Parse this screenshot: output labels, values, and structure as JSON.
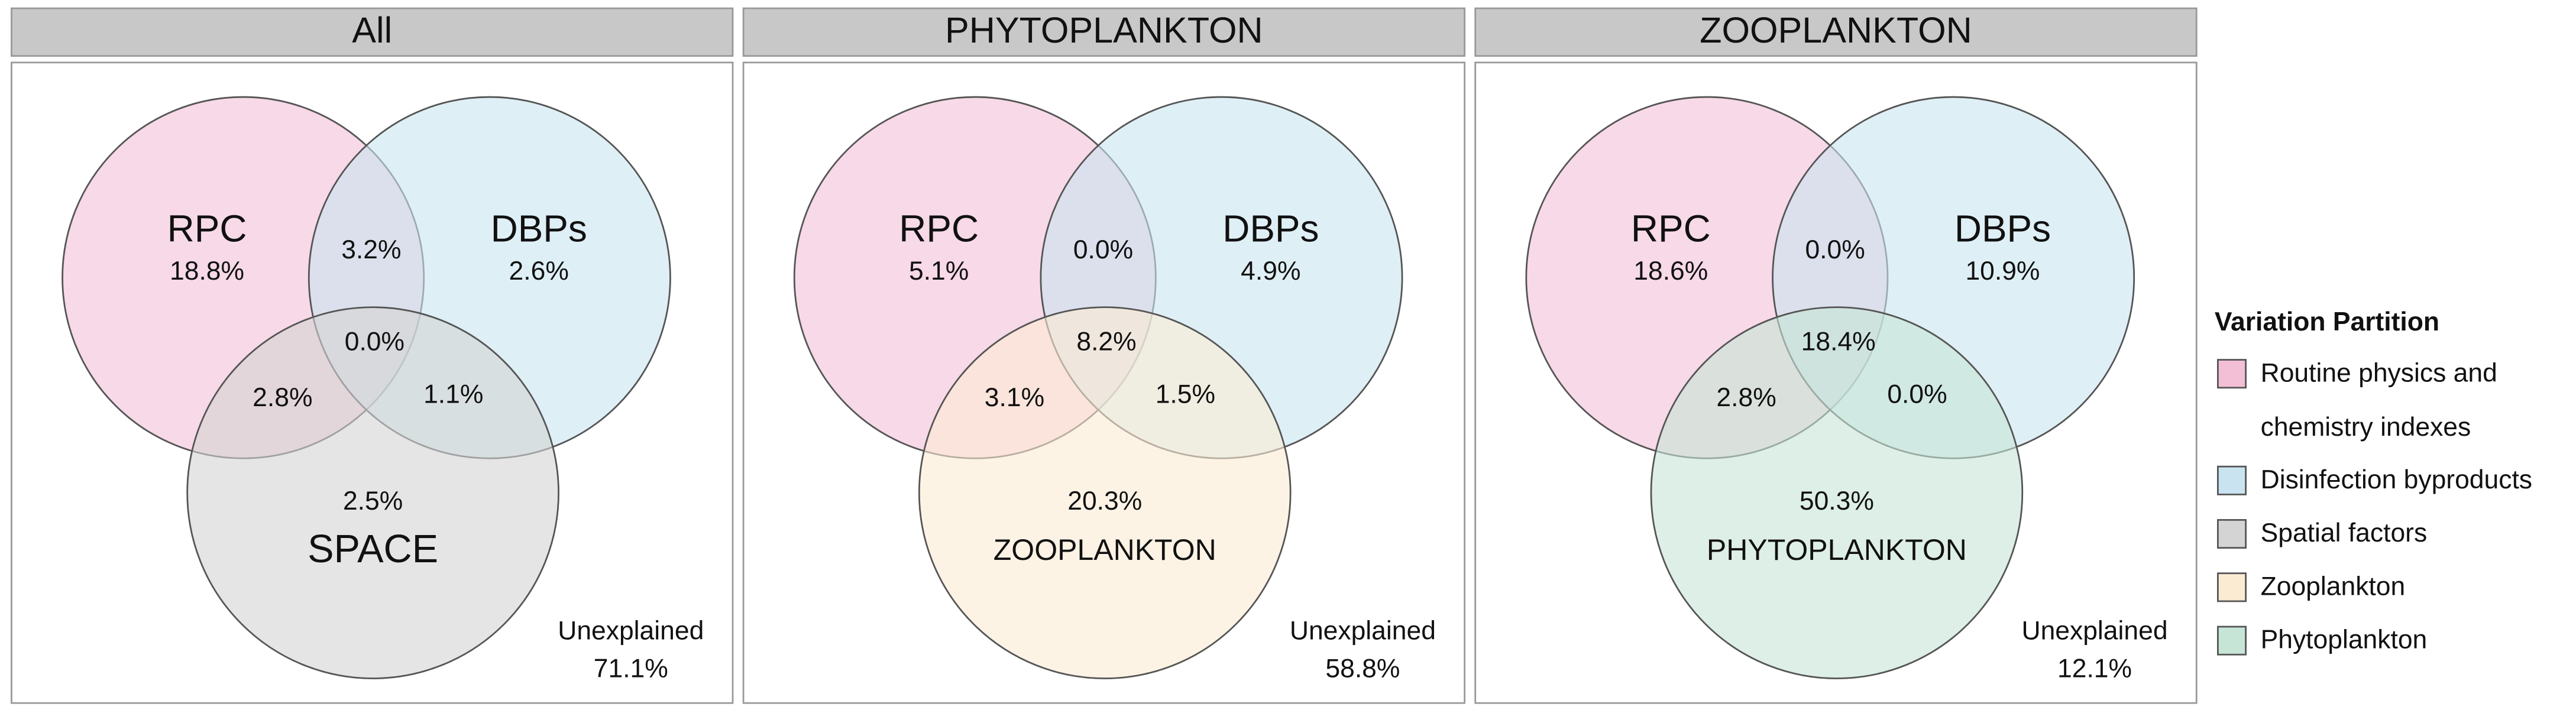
{
  "panels": [
    {
      "title": "All",
      "sets": [
        {
          "label": "RPC",
          "value": "18.8%",
          "color": "#f2bfd7"
        },
        {
          "label": "DBPs",
          "value": "2.6%",
          "color": "#c9e4f0"
        },
        {
          "label": "SPACE",
          "value": "2.5%",
          "color": "#d4d4d4"
        }
      ],
      "overlaps": {
        "rpc_dbps": "3.2%",
        "center": "0.0%",
        "rpc_third": "2.8%",
        "dbps_third": "1.1%"
      },
      "unexplained": {
        "label": "Unexplained",
        "value": "71.1%"
      }
    },
    {
      "title": "PHYTOPLANKTON",
      "sets": [
        {
          "label": "RPC",
          "value": "5.1%",
          "color": "#f2bfd7"
        },
        {
          "label": "DBPs",
          "value": "4.9%",
          "color": "#c9e4f0"
        },
        {
          "label": "ZOOPLANKTON",
          "value": "20.3%",
          "color": "#fbebd3"
        }
      ],
      "overlaps": {
        "rpc_dbps": "0.0%",
        "center": "8.2%",
        "rpc_third": "3.1%",
        "dbps_third": "1.5%"
      },
      "unexplained": {
        "label": "Unexplained",
        "value": "58.8%"
      }
    },
    {
      "title": "ZOOPLANKTON",
      "sets": [
        {
          "label": "RPC",
          "value": "18.6%",
          "color": "#f2bfd7"
        },
        {
          "label": "DBPs",
          "value": "10.9%",
          "color": "#c9e4f0"
        },
        {
          "label": "PHYTOPLANKTON",
          "value": "50.3%",
          "color": "#c6e5d6"
        }
      ],
      "overlaps": {
        "rpc_dbps": "0.0%",
        "center": "18.4%",
        "rpc_third": "2.8%",
        "dbps_third": "0.0%"
      },
      "unexplained": {
        "label": "Unexplained",
        "value": "12.1%"
      }
    }
  ],
  "legend": {
    "title": "Variation Partition",
    "items": [
      {
        "lines": [
          "Routine physics and",
          "chemistry indexes"
        ],
        "color": "#f2bfd7"
      },
      {
        "lines": [
          "Disinfection byproducts"
        ],
        "color": "#c9e4f0"
      },
      {
        "lines": [
          "Spatial factors"
        ],
        "color": "#d4d4d4"
      },
      {
        "lines": [
          "Zooplankton"
        ],
        "color": "#fbebd3"
      },
      {
        "lines": [
          "Phytoplankton"
        ],
        "color": "#c6e5d6"
      }
    ]
  }
}
